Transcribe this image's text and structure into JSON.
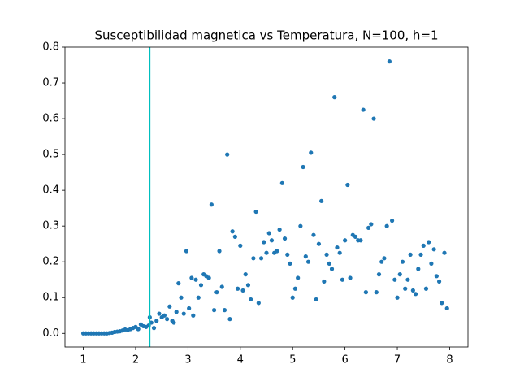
{
  "chart_data": {
    "type": "scatter",
    "title": "Susceptibilidad magnetica vs Temperatura, N=100, h=1",
    "color": "#1f77b4",
    "vline": 2.27,
    "vline_color": "#00bfbf",
    "xlim": [
      0.65,
      8.35
    ],
    "ylim": [
      -0.038,
      0.8
    ],
    "xticks": [
      1,
      2,
      3,
      4,
      5,
      6,
      7,
      8
    ],
    "yticks": [
      {
        "value": 0,
        "label": "0.0"
      },
      0.1,
      0.2,
      0.3,
      0.4,
      0.5,
      0.6,
      0.7,
      0.8
    ],
    "x": [
      1.0,
      1.05,
      1.1,
      1.15,
      1.2,
      1.25,
      1.3,
      1.35,
      1.4,
      1.45,
      1.5,
      1.55,
      1.6,
      1.65,
      1.7,
      1.75,
      1.8,
      1.85,
      1.9,
      1.95,
      2.0,
      2.05,
      2.1,
      2.15,
      2.2,
      2.25,
      2.27,
      2.3,
      2.35,
      2.4,
      2.45,
      2.5,
      2.55,
      2.6,
      2.65,
      2.7,
      2.73,
      2.78,
      2.82,
      2.87,
      2.92,
      2.97,
      3.02,
      3.07,
      3.1,
      3.15,
      3.2,
      3.25,
      3.3,
      3.35,
      3.4,
      3.45,
      3.5,
      3.55,
      3.6,
      3.65,
      3.7,
      3.75,
      3.8,
      3.85,
      3.9,
      3.95,
      4.0,
      4.05,
      4.1,
      4.15,
      4.2,
      4.25,
      4.3,
      4.35,
      4.4,
      4.45,
      4.5,
      4.55,
      4.6,
      4.65,
      4.7,
      4.75,
      4.8,
      4.85,
      4.9,
      4.95,
      5.0,
      5.05,
      5.1,
      5.15,
      5.2,
      5.25,
      5.3,
      5.35,
      5.4,
      5.45,
      5.5,
      5.55,
      5.6,
      5.65,
      5.7,
      5.75,
      5.8,
      5.85,
      5.9,
      5.95,
      6.0,
      6.05,
      6.1,
      6.15,
      6.2,
      6.25,
      6.3,
      6.35,
      6.4,
      6.45,
      6.5,
      6.55,
      6.6,
      6.65,
      6.7,
      6.75,
      6.8,
      6.85,
      6.9,
      6.95,
      7.0,
      7.05,
      7.1,
      7.15,
      7.2,
      7.25,
      7.3,
      7.35,
      7.4,
      7.45,
      7.5,
      7.55,
      7.6,
      7.65,
      7.7,
      7.75,
      7.8,
      7.85,
      7.9,
      7.95
    ],
    "values": [
      0,
      0,
      0,
      0,
      0,
      0,
      0,
      0,
      0,
      0,
      0.001,
      0.002,
      0.004,
      0.005,
      0.006,
      0.008,
      0.011,
      0.009,
      0.012,
      0.015,
      0.018,
      0.012,
      0.025,
      0.02,
      0.018,
      0.022,
      0.045,
      0.03,
      0.015,
      0.035,
      0.055,
      0.045,
      0.05,
      0.04,
      0.075,
      0.035,
      0.03,
      0.06,
      0.14,
      0.1,
      0.055,
      0.23,
      0.07,
      0.155,
      0.05,
      0.15,
      0.1,
      0.135,
      0.165,
      0.16,
      0.155,
      0.36,
      0.065,
      0.115,
      0.23,
      0.13,
      0.065,
      0.5,
      0.04,
      0.285,
      0.27,
      0.125,
      0.245,
      0.12,
      0.165,
      0.135,
      0.095,
      0.21,
      0.34,
      0.085,
      0.21,
      0.255,
      0.225,
      0.28,
      0.26,
      0.225,
      0.23,
      0.29,
      0.42,
      0.265,
      0.22,
      0.195,
      0.1,
      0.125,
      0.155,
      0.3,
      0.465,
      0.215,
      0.2,
      0.505,
      0.275,
      0.095,
      0.25,
      0.37,
      0.145,
      0.22,
      0.195,
      0.18,
      0.66,
      0.24,
      0.225,
      0.15,
      0.26,
      0.415,
      0.155,
      0.275,
      0.27,
      0.26,
      0.26,
      0.625,
      0.115,
      0.295,
      0.305,
      0.6,
      0.115,
      0.165,
      0.2,
      0.21,
      0.3,
      0.76,
      0.315,
      0.15,
      0.1,
      0.165,
      0.2,
      0.125,
      0.15,
      0.22,
      0.12,
      0.11,
      0.18,
      0.22,
      0.245,
      0.125,
      0.255,
      0.195,
      0.235,
      0.16,
      0.145,
      0.085,
      0.225,
      0.07
    ]
  }
}
